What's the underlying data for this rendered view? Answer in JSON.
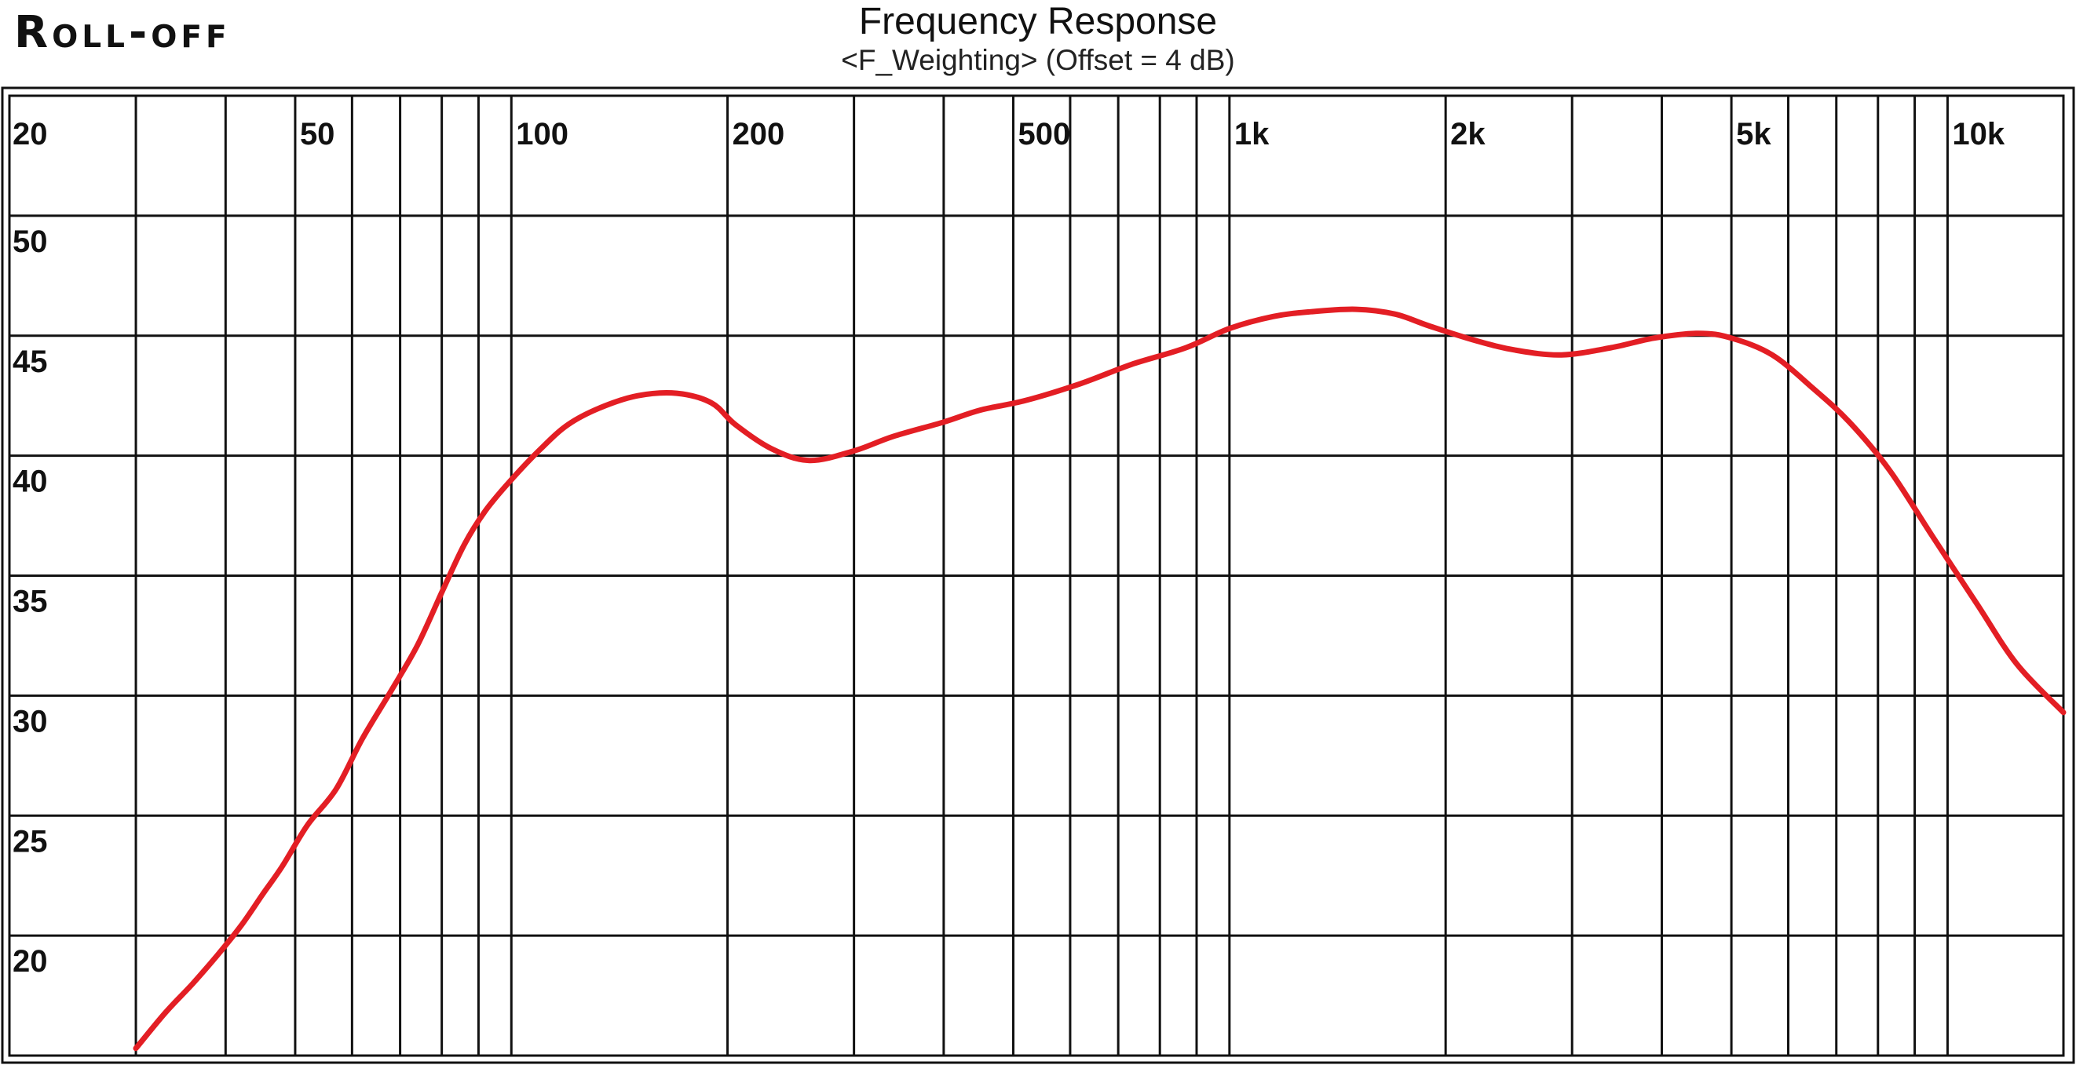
{
  "brand": "Roll-off",
  "chart_data": {
    "type": "line",
    "title": "Frequency Response",
    "subtitle": "<F_Weighting> (Offset = 4 dB)",
    "xscale": "log",
    "xlim": [
      20,
      14500
    ],
    "ylim": [
      15,
      55
    ],
    "x_ticks": [
      {
        "value": 20,
        "label": "20"
      },
      {
        "value": 50,
        "label": "50"
      },
      {
        "value": 100,
        "label": "100"
      },
      {
        "value": 200,
        "label": "200"
      },
      {
        "value": 500,
        "label": "500"
      },
      {
        "value": 1000,
        "label": "1k"
      },
      {
        "value": 2000,
        "label": "2k"
      },
      {
        "value": 5000,
        "label": "5k"
      },
      {
        "value": 10000,
        "label": "10k"
      }
    ],
    "x_gridlines": [
      30,
      40,
      50,
      60,
      70,
      80,
      90,
      100,
      200,
      300,
      400,
      500,
      600,
      700,
      800,
      900,
      1000,
      2000,
      3000,
      4000,
      5000,
      6000,
      7000,
      8000,
      9000,
      10000
    ],
    "y_ticks": [
      50,
      45,
      40,
      35,
      30,
      25,
      20
    ],
    "grid": true,
    "series_color": "#e31e24",
    "series": [
      {
        "x": [
          30,
          33,
          36,
          39,
          42,
          45,
          48,
          52,
          57,
          62,
          68,
          74,
          80,
          86,
          92,
          100,
          110,
          120,
          133,
          150,
          170,
          190,
          205,
          230,
          260,
          300,
          340,
          400,
          450,
          520,
          620,
          730,
          870,
          1000,
          1150,
          1300,
          1500,
          1700,
          1900,
          2200,
          2500,
          2900,
          3400,
          3900,
          4500,
          5000,
          5700,
          6500,
          7300,
          8300,
          9500,
          11000,
          12500,
          14500
        ],
        "y": [
          15.3,
          16.8,
          18.0,
          19.2,
          20.4,
          21.7,
          22.9,
          24.6,
          26.1,
          28.2,
          30.2,
          32.1,
          34.3,
          36.3,
          37.7,
          39.0,
          40.3,
          41.3,
          42.0,
          42.5,
          42.6,
          42.2,
          41.3,
          40.3,
          39.8,
          40.2,
          40.8,
          41.4,
          41.9,
          42.3,
          43.0,
          43.8,
          44.5,
          45.3,
          45.8,
          46.0,
          46.1,
          45.9,
          45.4,
          44.8,
          44.4,
          44.2,
          44.5,
          44.9,
          45.1,
          44.9,
          44.2,
          42.8,
          41.4,
          39.4,
          36.7,
          33.8,
          31.3,
          29.3
        ]
      }
    ]
  }
}
